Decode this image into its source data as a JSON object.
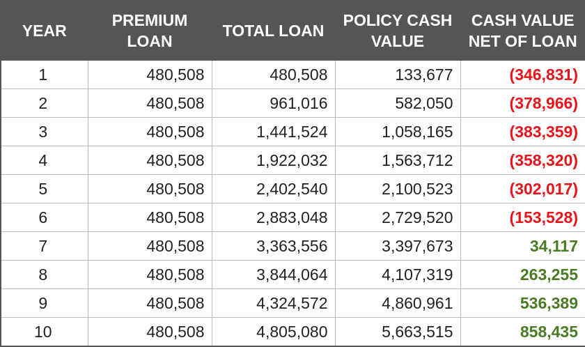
{
  "table": {
    "headers": [
      "YEAR",
      "PREMIUM\nLOAN",
      "TOTAL LOAN",
      "POLICY CASH\nVALUE",
      "CASH VALUE\nNET OF LOAN"
    ],
    "rows": [
      [
        "1",
        "480,508",
        "480,508",
        "133,677",
        "(346,831)"
      ],
      [
        "2",
        "480,508",
        "961,016",
        "582,050",
        "(378,966)"
      ],
      [
        "3",
        "480,508",
        "1,441,524",
        "1,058,165",
        "(383,359)"
      ],
      [
        "4",
        "480,508",
        "1,922,032",
        "1,563,712",
        "(358,320)"
      ],
      [
        "5",
        "480,508",
        "2,402,540",
        "2,100,523",
        "(302,017)"
      ],
      [
        "6",
        "480,508",
        "2,883,048",
        "2,729,520",
        "(153,528)"
      ],
      [
        "7",
        "480,508",
        "3,363,556",
        "3,397,673",
        "34,117"
      ],
      [
        "8",
        "480,508",
        "3,844,064",
        "4,107,319",
        "263,255"
      ],
      [
        "9",
        "480,508",
        "4,324,572",
        "4,860,961",
        "536,389"
      ],
      [
        "10",
        "480,508",
        "4,805,080",
        "5,663,515",
        "858,435"
      ]
    ]
  }
}
